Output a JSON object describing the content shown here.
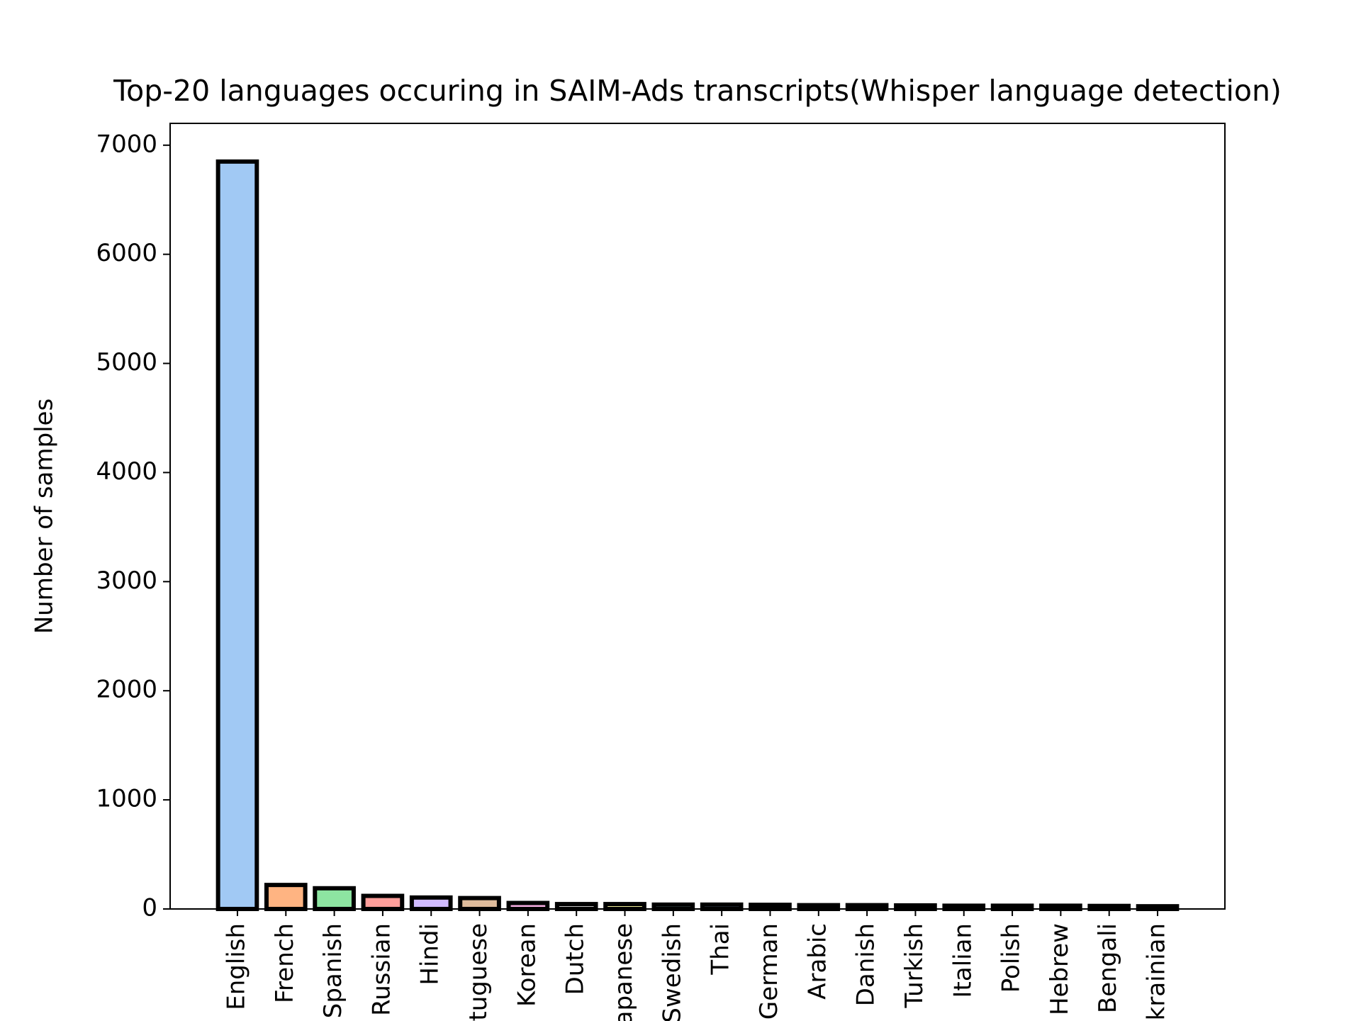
{
  "chart_data": {
    "type": "bar",
    "title": "Top-20 languages occuring in SAIM-Ads transcripts(Whisper language detection)",
    "y_label": "Number of samples",
    "categories": [
      "English",
      "French",
      "Spanish",
      "Russian",
      "Hindi",
      "Portuguese",
      "Korean",
      "Dutch",
      "Japanese",
      "Swedish",
      "Thai",
      "German",
      "Arabic",
      "Danish",
      "Turkish",
      "Italian",
      "Polish",
      "Hebrew",
      "Bengali",
      "Ukrainian"
    ],
    "values": [
      6850,
      220,
      190,
      120,
      105,
      100,
      55,
      45,
      45,
      40,
      40,
      38,
      35,
      35,
      33,
      30,
      30,
      30,
      28,
      25
    ],
    "colors": [
      "#a1c9f4",
      "#ffb482",
      "#8de5a1",
      "#ff9f9b",
      "#d0bbff",
      "#debb9b",
      "#fab0e4",
      "#cfcfcf",
      "#fffea3",
      "#b9f2f0",
      "#a1c9f4",
      "#ffb482",
      "#8de5a1",
      "#ff9f9b",
      "#d0bbff",
      "#debb9b",
      "#fab0e4",
      "#cfcfcf",
      "#fffea3",
      "#b9f2f0"
    ],
    "edge_color": "#000000",
    "ylim": [
      0,
      7200
    ],
    "yticks": [
      0,
      1000,
      2000,
      3000,
      4000,
      5000,
      6000,
      7000
    ],
    "grid": false
  }
}
